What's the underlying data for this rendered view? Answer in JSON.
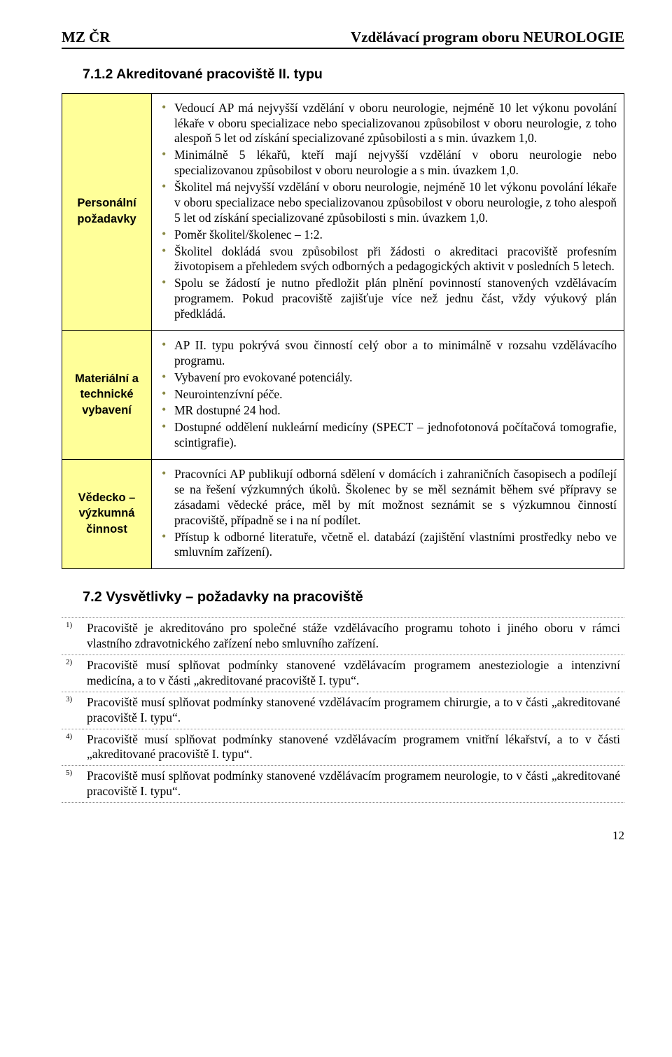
{
  "header": {
    "left": "MZ ČR",
    "right": "Vzdělávací program oboru NEUROLOGIE"
  },
  "section_7_1_2": {
    "title": "7.1.2   Akreditované pracoviště II. typu",
    "rows": [
      {
        "label": "Personální požadavky",
        "bullets": [
          "Vedoucí AP má nejvyšší vzdělání v oboru neurologie, nejméně 10 let výkonu povolání lékaře v oboru specializace nebo specializovanou způsobilost v oboru neurologie, z toho alespoň 5 let od získání specializované způsobilosti a s min. úvazkem 1,0.",
          "Minimálně 5 lékařů, kteří mají nejvyšší vzdělání v oboru neurologie nebo specializovanou způsobilost v oboru neurologie a s min. úvazkem 1,0.",
          "Školitel má nejvyšší vzdělání v oboru neurologie, nejméně 10 let výkonu povolání lékaře v oboru specializace nebo specializovanou způsobilost v oboru neurologie, z toho alespoň 5 let od získání specializované způsobilosti s min. úvazkem 1,0.",
          "Poměr školitel/školenec – 1:2.",
          "Školitel dokládá svou způsobilost při žádosti o akreditaci pracoviště profesním životopisem a přehledem svých odborných a pedagogických aktivit v posledních 5 letech.",
          "Spolu se žádostí je nutno předložit plán plnění povinností stanovených vzdělávacím programem. Pokud pracoviště zajišťuje více než jednu část, vždy výukový plán předkládá."
        ]
      },
      {
        "label": "Materiální a technické vybavení",
        "bullets": [
          "AP II. typu pokrývá svou činností celý obor a to minimálně v rozsahu vzdělávacího programu.",
          "Vybavení pro evokované potenciály.",
          "Neurointenzívní péče.",
          "MR dostupné 24 hod.",
          "Dostupné oddělení nukleární medicíny (SPECT – jednofotonová počítačová tomografie, scintigrafie)."
        ]
      },
      {
        "label": "Vědecko – výzkumná činnost",
        "bullets": [
          "Pracovníci AP publikují odborná sdělení v domácích i zahraničních časopisech a podílejí se na řešení výzkumných úkolů. Školenec by se měl seznámit během své přípravy se zásadami vědecké práce, měl by mít možnost seznámit se s výzkumnou činností pracoviště, případně se i na ní podílet.",
          "Přístup k odborné literatuře, včetně el. databází (zajištění vlastními prostředky nebo ve smluvním zařízení)."
        ]
      }
    ]
  },
  "section_7_2": {
    "title": "7.2 Vysvětlivky – požadavky na pracoviště",
    "notes": [
      {
        "n": "1)",
        "text": "Pracoviště je akreditováno pro společné stáže vzdělávacího programu tohoto i jiného oboru v rámci vlastního zdravotnického zařízení nebo smluvního zařízení."
      },
      {
        "n": "2)",
        "text": "Pracoviště musí splňovat podmínky stanovené vzdělávacím programem anesteziologie a intenzivní medicína, a to v části „akreditované pracoviště I. typu“."
      },
      {
        "n": "3)",
        "text": "Pracoviště musí splňovat podmínky stanovené vzdělávacím programem chirurgie, a to v části „akreditované pracoviště I. typu“."
      },
      {
        "n": "4)",
        "text": "Pracoviště musí splňovat podmínky stanovené vzdělávacím programem vnitřní lékařství, a to v části „akreditované pracoviště I. typu“."
      },
      {
        "n": "5)",
        "text": "Pracoviště musí splňovat podmínky stanovené vzdělávacím programem neurologie, to v části „akreditované pracoviště I. typu“."
      }
    ]
  },
  "page_number": "12",
  "colors": {
    "row_label_bg": "#ffff99",
    "bullet": "#888844",
    "dotted_border": "#888888"
  },
  "fonts": {
    "body": "Times New Roman",
    "heading": "Arial"
  }
}
